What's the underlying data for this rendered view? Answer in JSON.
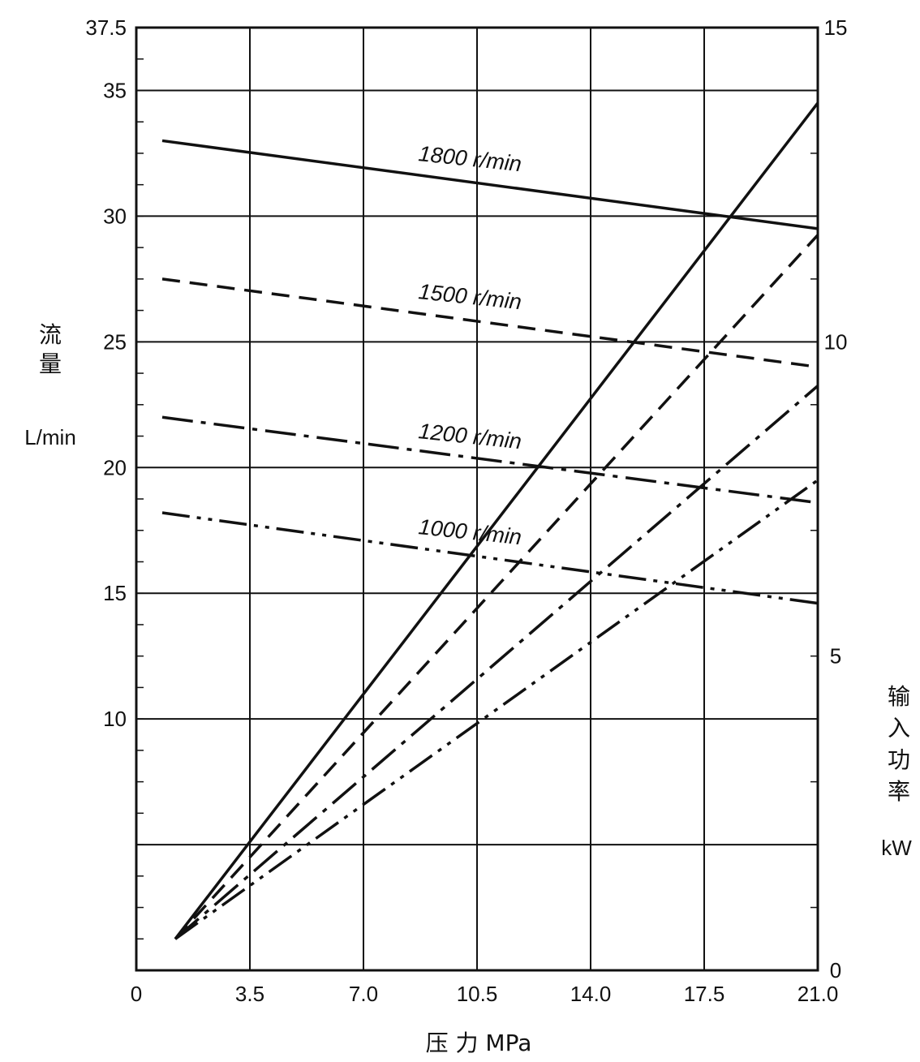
{
  "chart_data": {
    "type": "line",
    "x_axis": {
      "label": "压 力  MPa",
      "range": [
        0,
        21.0
      ],
      "ticks": [
        "0",
        "3.5",
        "7.0",
        "10.5",
        "14.0",
        "17.5",
        "21.0"
      ]
    },
    "y_axis_left": {
      "label_chars": [
        "流",
        "量"
      ],
      "unit": "L/min",
      "range": [
        0,
        37.5
      ],
      "ticks": [
        "10",
        "15",
        "20",
        "25",
        "30",
        "35",
        "37.5"
      ]
    },
    "y_axis_right": {
      "label_chars": [
        "输",
        "入",
        "功",
        "率"
      ],
      "unit": "kW",
      "range": [
        0,
        15
      ],
      "ticks": [
        "0",
        "5",
        "10",
        "15"
      ]
    },
    "grid": true,
    "flow_series": [
      {
        "name": "1800 r/min",
        "style": "solid",
        "x": [
          0.8,
          21.0
        ],
        "y": [
          33.0,
          29.5
        ]
      },
      {
        "name": "1500 r/min",
        "style": "dashed",
        "x": [
          0.8,
          21.0
        ],
        "y": [
          27.5,
          24.0
        ]
      },
      {
        "name": "1200 r/min",
        "style": "dashdot",
        "x": [
          0.8,
          21.0
        ],
        "y": [
          22.0,
          18.6
        ]
      },
      {
        "name": "1000 r/min",
        "style": "dashdotdot",
        "x": [
          0.8,
          21.0
        ],
        "y": [
          18.2,
          14.6
        ]
      }
    ],
    "power_series": [
      {
        "speed": "1800 r/min",
        "style": "solid",
        "x": [
          1.2,
          21.0
        ],
        "y": [
          0.5,
          13.8
        ]
      },
      {
        "speed": "1500 r/min",
        "style": "dashed",
        "x": [
          1.2,
          21.0
        ],
        "y": [
          0.5,
          11.7
        ]
      },
      {
        "speed": "1200 r/min",
        "style": "dashdot",
        "x": [
          1.2,
          21.0
        ],
        "y": [
          0.5,
          9.3
        ]
      },
      {
        "speed": "1000 r/min",
        "style": "dashdotdot",
        "x": [
          1.2,
          21.0
        ],
        "y": [
          0.5,
          7.8
        ]
      }
    ]
  }
}
